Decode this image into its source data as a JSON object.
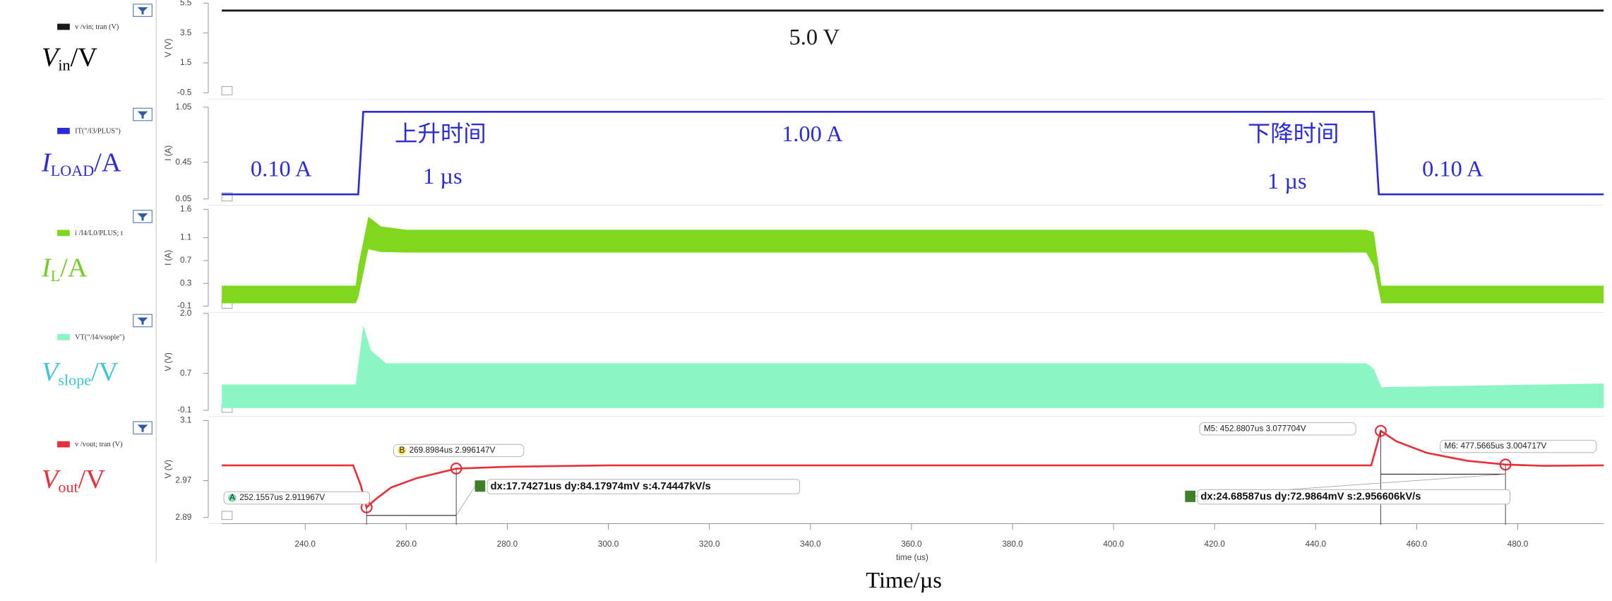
{
  "chart_data": [
    {
      "type": "line",
      "label": {
        "main": "V",
        "sub": "in",
        "unit": "/V"
      },
      "ylabel": "V (V)",
      "xlim": [
        223.5,
        497
      ],
      "ylim": [
        -0.5,
        5.5
      ],
      "yticks": [
        5.5,
        3.5,
        1.5,
        -0.5
      ],
      "annotations": [
        "5.0 V"
      ],
      "label_color": "#000000",
      "series": [
        {
          "name": "v /vin; tran (V)",
          "color": "#1a1a1a",
          "x": [
            223.5,
            497
          ],
          "values": [
            5,
            5
          ]
        }
      ]
    },
    {
      "type": "line",
      "label": {
        "main": "I",
        "sub": "LOAD",
        "unit": "/A"
      },
      "ylabel": "I (A)",
      "xlim": [
        223.5,
        497
      ],
      "ylim": [
        0.05,
        1.05
      ],
      "yticks": [
        1.05,
        0.45,
        0.05
      ],
      "annotations": [
        "0.10 A",
        "上升时间",
        "1 µs",
        "1.00 A",
        "下降时间",
        "1 µs",
        "0.10 A"
      ],
      "label_color": "#2b2bd9",
      "series": [
        {
          "name": "IT(\"/I3/PLUS\")",
          "color": "#2b2bd9",
          "x": [
            223.5,
            250.5,
            251.5,
            451.5,
            452.5,
            497
          ],
          "values": [
            0.1,
            0.1,
            1.0,
            1.0,
            0.1,
            0.1
          ]
        }
      ]
    },
    {
      "type": "band",
      "label": {
        "main": "I",
        "sub": "L",
        "unit": "/A"
      },
      "ylabel": "I (A)",
      "xlim": [
        223.5,
        497
      ],
      "ylim": [
        -0.1,
        1.6
      ],
      "yticks": [
        1.6,
        1.1,
        0.7,
        0.3,
        -0.1
      ],
      "annotations": [],
      "label_color": "#6fcf1f",
      "series": [
        {
          "name": "i /I4/L0/PLUS; t",
          "color": "#7fd81e",
          "x": [
            223.5,
            250,
            250.5,
            252.5,
            255,
            260,
            450,
            451.5,
            453,
            497
          ],
          "values": [
            0.26,
            0.26,
            0.6,
            1.47,
            1.3,
            1.24,
            1.24,
            1.2,
            0.26,
            0.26
          ],
          "lower": [
            -0.05,
            -0.05,
            0.05,
            0.9,
            0.85,
            0.84,
            0.84,
            0.6,
            -0.05,
            -0.05
          ]
        }
      ]
    },
    {
      "type": "band",
      "label": {
        "main": "V",
        "sub": "slope",
        "unit": "/V"
      },
      "ylabel": "V (V)",
      "xlim": [
        223.5,
        497
      ],
      "ylim": [
        -0.1,
        2.0
      ],
      "yticks": [
        {
          "value": 2.0,
          "label": "2.0"
        },
        0.7,
        -0.1
      ],
      "annotations": [],
      "label_color": "#3dc8d8",
      "series": [
        {
          "name": "VT(\"/I4/vsople\")",
          "color": "#8cf5c4",
          "x": [
            223.5,
            250,
            251.5,
            253,
            256,
            450,
            451.5,
            453,
            497
          ],
          "values": [
            0.46,
            0.46,
            1.74,
            1.2,
            0.92,
            0.92,
            0.8,
            0.4,
            0.48
          ],
          "lower": [
            -0.05,
            -0.05,
            -0.05,
            -0.05,
            -0.05,
            -0.05,
            -0.05,
            -0.05,
            -0.05
          ]
        }
      ]
    },
    {
      "type": "line",
      "label": {
        "main": "V",
        "sub": "out",
        "unit": "/V"
      },
      "ylabel": "V (V)",
      "xlim": [
        223.5,
        497
      ],
      "ylim": [
        2.89,
        3.1
      ],
      "yticks": [
        3.1,
        2.97,
        2.89
      ],
      "xticks": [
        {
          "value": 240,
          "label": "240.0"
        },
        {
          "value": 260,
          "label": "260.0"
        },
        {
          "value": 280,
          "label": "280.0"
        },
        {
          "value": 300,
          "label": "300.0"
        },
        {
          "value": 320,
          "label": "320.0"
        },
        {
          "value": 340,
          "label": "340.0"
        },
        {
          "value": 360,
          "label": "360.0"
        },
        {
          "value": 380,
          "label": "380.0"
        },
        {
          "value": 400,
          "label": "400.0"
        },
        {
          "value": 420,
          "label": "420.0"
        },
        {
          "value": 440,
          "label": "440.0"
        },
        {
          "value": 460,
          "label": "460.0"
        },
        {
          "value": 480,
          "label": "480.0"
        }
      ],
      "xlabel": "time (us)",
      "xtitle": "Time/µs",
      "annotations": [],
      "label_color": "#e8303a",
      "series": [
        {
          "name": "v /vout; tran (V)",
          "color": "#e8303a",
          "x": [
            223.5,
            249.5,
            251,
            252.16,
            254,
            257,
            262,
            269.9,
            280,
            300,
            451,
            452.88,
            456,
            462,
            470,
            477.57,
            485,
            497
          ],
          "values": [
            3.003,
            3.003,
            2.96,
            2.912,
            2.93,
            2.955,
            2.975,
            2.996,
            3.0,
            3.003,
            3.003,
            3.0777,
            3.055,
            3.03,
            3.013,
            3.0047,
            3.002,
            3.003
          ]
        }
      ],
      "markers": [
        {
          "tag": "A",
          "x": 252.1557,
          "y": 2.911967,
          "label": "252.1557us 2.911967V"
        },
        {
          "tag": "B",
          "x": 269.8984,
          "y": 2.996147,
          "label": "269.8984us 2.996147V"
        },
        {
          "x": 452.8807,
          "y": 3.077704,
          "label": "M5: 452.8807us 3.077704V"
        },
        {
          "x": 477.5665,
          "y": 3.004717,
          "label": "M6: 477.5665us 3.004717V"
        }
      ],
      "measurements": [
        "dx:17.74271us dy:84.17974mV s:4.74447kV/s",
        "dx:24.68587us dy:72.9864mV s:2.956606kV/s"
      ]
    }
  ]
}
